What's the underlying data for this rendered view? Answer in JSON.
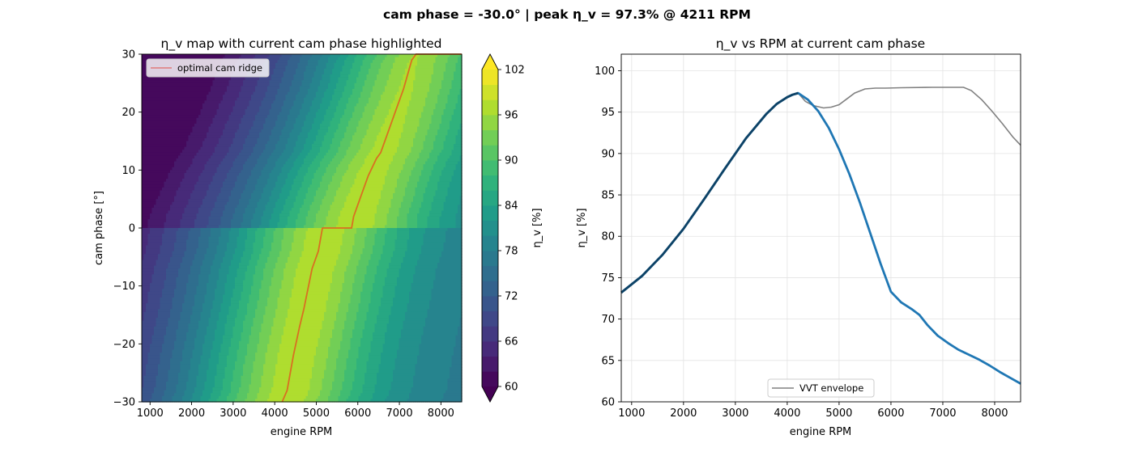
{
  "suptitle": "cam phase = -30.0°   |   peak η_v = 97.3% @ 4211 RPM",
  "chart_data": [
    {
      "type": "heatmap",
      "title": "η_v map with current cam phase highlighted",
      "xlabel": "engine RPM",
      "ylabel": "cam phase [°]",
      "xlim": [
        800,
        8500
      ],
      "ylim": [
        -30,
        30
      ],
      "xticks": [
        1000,
        2000,
        3000,
        4000,
        5000,
        6000,
        7000,
        8000
      ],
      "yticks": [
        -30,
        -20,
        -10,
        0,
        10,
        20,
        30
      ],
      "colorbar": {
        "label": "η_v [%]",
        "range": [
          60,
          102
        ],
        "ticks": [
          60,
          66,
          72,
          78,
          84,
          90,
          96,
          102
        ],
        "levels": [
          60,
          62,
          64,
          66,
          68,
          70,
          72,
          74,
          76,
          78,
          80,
          82,
          84,
          86,
          88,
          90,
          92,
          94,
          96,
          98,
          100,
          102
        ],
        "extend": "both"
      },
      "legend": {
        "placement": "upper-left",
        "entries": [
          {
            "label": "optimal cam ridge",
            "color": "#e07a7a"
          }
        ]
      },
      "ridge_series": {
        "name": "optimal cam ridge",
        "color": "#d96f21",
        "x": [
          4180,
          4300,
          4450,
          4600,
          4700,
          4900,
          5050,
          5150,
          5200,
          5850,
          5900,
          6050,
          6250,
          6450,
          6550,
          6700,
          6900,
          7100,
          7300,
          7400,
          8500
        ],
        "y": [
          -30,
          -28,
          -22,
          -17,
          -14,
          -7,
          -4,
          0,
          0,
          0,
          2,
          5,
          9,
          12,
          13,
          16,
          20,
          24,
          29,
          30,
          30
        ]
      }
    },
    {
      "type": "line",
      "title": "η_v vs RPM at current cam phase",
      "xlabel": "engine RPM",
      "ylabel": "η_v [%]",
      "xlim": [
        800,
        8500
      ],
      "ylim": [
        60,
        102
      ],
      "xticks": [
        1000,
        2000,
        3000,
        4000,
        5000,
        6000,
        7000,
        8000
      ],
      "yticks": [
        60,
        65,
        70,
        75,
        80,
        85,
        90,
        95,
        100
      ],
      "grid": true,
      "legend": {
        "placement": "lower-center",
        "entries": [
          {
            "label": "VVT envelope",
            "color": "#808080"
          }
        ]
      },
      "series": [
        {
          "name": "VVT envelope",
          "color": "#808080",
          "x": [
            4211,
            4350,
            4500,
            4700,
            4850,
            5000,
            5150,
            5300,
            5500,
            5700,
            5900,
            6200,
            6800,
            7400,
            7550,
            7750,
            7950,
            8150,
            8350,
            8500
          ],
          "y": [
            97.3,
            96.3,
            95.8,
            95.5,
            95.6,
            95.9,
            96.6,
            97.3,
            97.8,
            97.9,
            97.9,
            97.95,
            98.0,
            98.0,
            97.6,
            96.5,
            95.1,
            93.6,
            92.0,
            91.0
          ]
        },
        {
          "color": "#1f77b4",
          "x": [
            800,
            1200,
            1600,
            2000,
            2400,
            2800,
            3200,
            3600,
            3800,
            4000,
            4100,
            4211,
            4400,
            4600,
            4800,
            5000,
            5200,
            5400,
            5600,
            5800,
            6000,
            6200,
            6400,
            6550,
            6700,
            6900,
            7100,
            7300,
            7500,
            7700,
            7900,
            8100,
            8300,
            8500
          ],
          "y": [
            73.2,
            75.2,
            77.8,
            80.9,
            84.5,
            88.2,
            91.8,
            94.8,
            96.0,
            96.8,
            97.1,
            97.3,
            96.5,
            95.1,
            93.1,
            90.5,
            87.5,
            84.1,
            80.4,
            76.7,
            73.3,
            72.0,
            71.2,
            70.5,
            69.3,
            68.0,
            67.1,
            66.3,
            65.7,
            65.1,
            64.4,
            63.6,
            62.9,
            62.2
          ]
        }
      ]
    }
  ]
}
